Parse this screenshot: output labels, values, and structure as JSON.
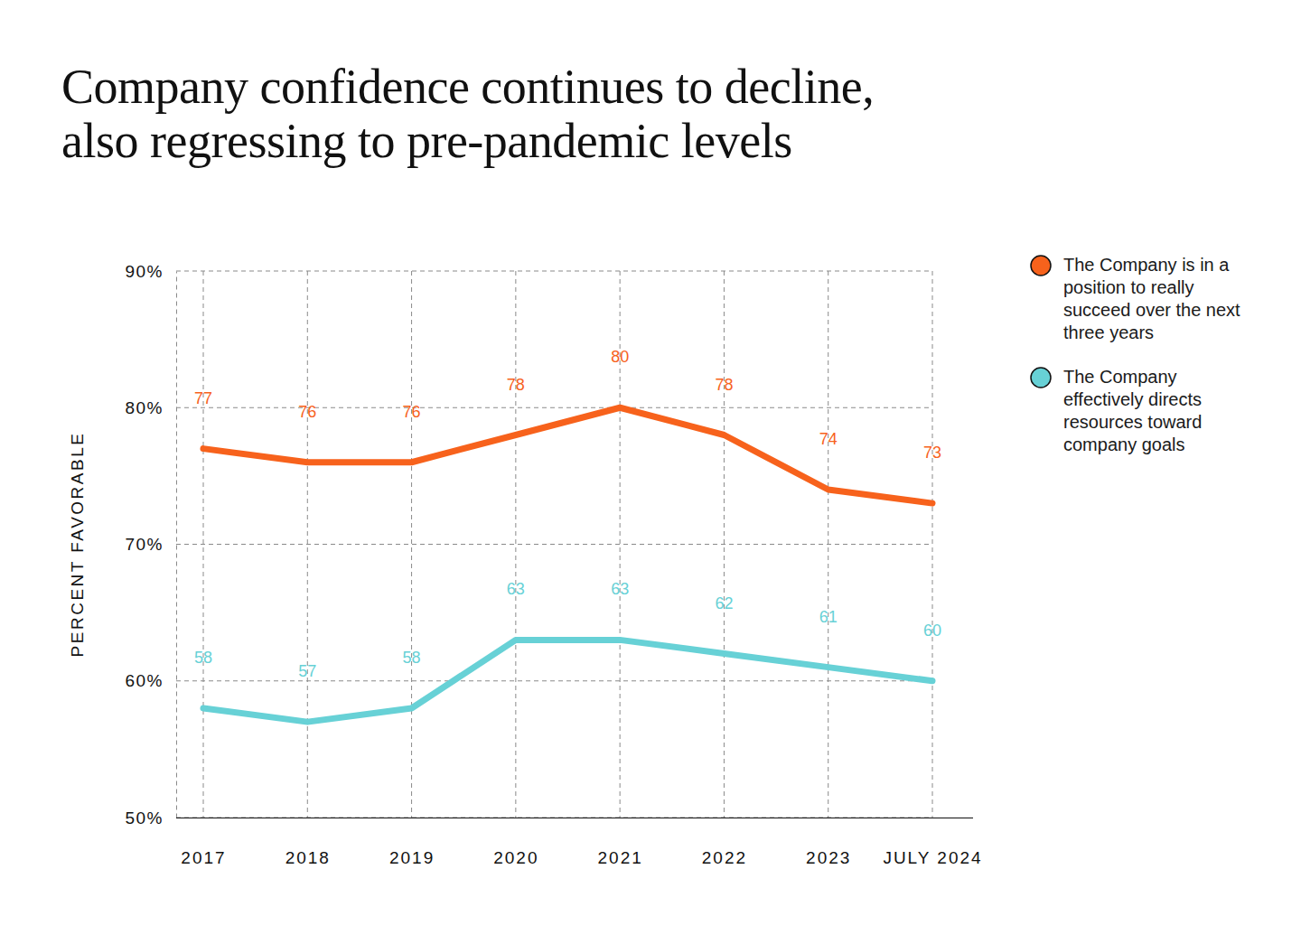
{
  "chart_data": {
    "type": "line",
    "title": "Company confidence continues to decline, also regressing to pre-pandemic levels",
    "ylabel": "PERCENT FAVORABLE",
    "categories": [
      "2017",
      "2018",
      "2019",
      "2020",
      "2021",
      "2022",
      "2023",
      "JULY 2024"
    ],
    "series": [
      {
        "name": "The Company is in a position to really succeed over the next three years",
        "color": "#f7621c",
        "values": [
          77,
          76,
          76,
          78,
          80,
          78,
          74,
          73
        ]
      },
      {
        "name": "The Company effectively directs resources toward company goals",
        "color": "#67d1d6",
        "values": [
          58,
          57,
          58,
          63,
          63,
          62,
          61,
          60
        ]
      }
    ],
    "ylim": [
      50,
      90
    ],
    "yticks": [
      {
        "value": 50,
        "label": "50%"
      },
      {
        "value": 60,
        "label": "60%"
      },
      {
        "value": 70,
        "label": "70%"
      },
      {
        "value": 80,
        "label": "80%"
      },
      {
        "value": 90,
        "label": "90%"
      }
    ],
    "grid": true,
    "data_labels": true,
    "legend": "right"
  }
}
